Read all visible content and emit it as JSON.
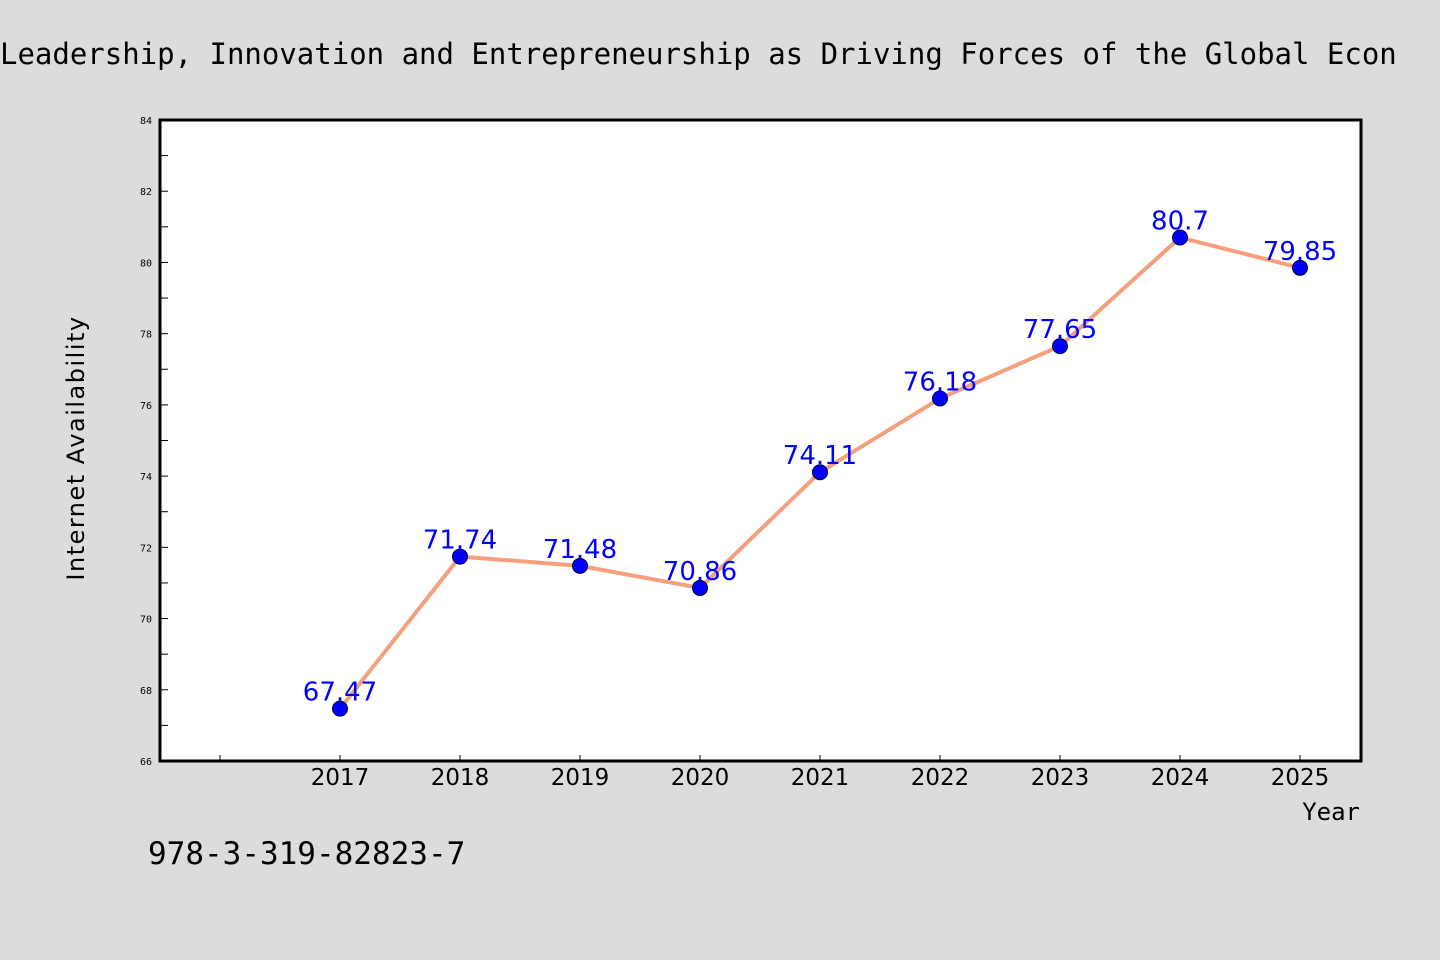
{
  "chart_data": {
    "type": "line",
    "title": "Leadership, Innovation and Entrepreneurship as Driving Forces of the Global Econ",
    "xlabel": "Year",
    "ylabel": "Internet Availability",
    "categories": [
      "2017",
      "2018",
      "2019",
      "2020",
      "2021",
      "2022",
      "2023",
      "2024",
      "2025"
    ],
    "series": [
      {
        "values": [
          67.47,
          71.74,
          71.48,
          70.86,
          74.11,
          76.18,
          77.65,
          80.7,
          79.85
        ],
        "value_labels": [
          "67.47",
          "71.74",
          "71.48",
          "70.86",
          "74.11",
          "76.18",
          "77.65",
          "80.7",
          "79.85"
        ],
        "line_color": "#f4a07e",
        "marker_color": "#0000ff",
        "label_color": "#0000ff"
      }
    ],
    "ylim": [
      66,
      84
    ],
    "yticks": [
      "66",
      "68",
      "70",
      "72",
      "74",
      "76",
      "78",
      "80",
      "82",
      "84"
    ],
    "grid": false,
    "legend": "none"
  },
  "footer": {
    "isbn": "978-3-319-82823-7"
  },
  "colors": {
    "background": "#dcdcdc",
    "plot_background": "#ffffff"
  }
}
